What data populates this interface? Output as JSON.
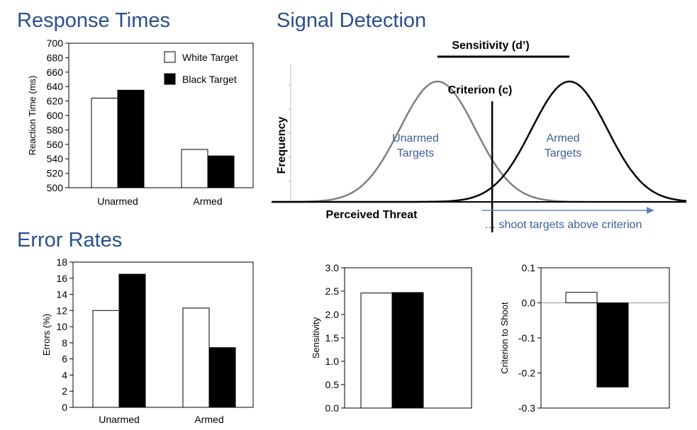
{
  "sections": {
    "response_times": "Response Times",
    "signal_detection": "Signal Detection",
    "error_rates": "Error Rates"
  },
  "colors": {
    "heading": "#2a4f8f",
    "curve_label": "#3b5f96",
    "unarmed_curve": "#808080",
    "armed_curve": "#000000",
    "white_bar": "#ffffff",
    "black_bar": "#000000",
    "arrow": "#5b86c2"
  },
  "signal_detection": {
    "sensitivity_label": "Sensitivity (d’)",
    "criterion_label": "Criterion (c)",
    "y_label": "Frequency",
    "x_label": "Perceived Threat",
    "unarmed_line1": "Unarmed",
    "unarmed_line2": "Targets",
    "armed_line1": "Armed",
    "armed_line2": "Targets",
    "arrow_text": "… shoot targets above criterion"
  },
  "chart_data": [
    {
      "id": "rt",
      "type": "bar",
      "title": "Response Times",
      "categories": [
        "Unarmed",
        "Armed"
      ],
      "series": [
        {
          "name": "White Target",
          "values": [
            624,
            553
          ]
        },
        {
          "name": "Black Target",
          "values": [
            635,
            544
          ]
        }
      ],
      "xlabel": "",
      "ylabel": "Reaction Time (ms)",
      "ylim": [
        500,
        700
      ],
      "yticks": [
        500,
        520,
        540,
        560,
        580,
        600,
        620,
        640,
        660,
        680,
        700
      ],
      "ytick_labels": [
        "500",
        "520",
        "540",
        "560",
        "580",
        "600",
        "620",
        "640",
        "660",
        "680",
        "700"
      ],
      "legend": "top-right",
      "grid": false
    },
    {
      "id": "err",
      "type": "bar",
      "title": "Error Rates",
      "categories": [
        "Unarmed",
        "Armed"
      ],
      "series": [
        {
          "values": [
            12.0,
            12.3
          ]
        },
        {
          "values": [
            16.5,
            7.4
          ]
        }
      ],
      "xlabel": "",
      "ylabel": "Errors (%)",
      "ylim": [
        0,
        18
      ],
      "yticks": [
        0,
        2,
        4,
        6,
        8,
        10,
        12,
        14,
        16,
        18
      ],
      "ytick_labels": [
        "0",
        "2",
        "4",
        "6",
        "8",
        "10",
        "12",
        "14",
        "16",
        "18"
      ],
      "grid": false
    },
    {
      "id": "sens",
      "type": "bar",
      "categories": [
        "",
        ""
      ],
      "values": [
        2.46,
        2.47
      ],
      "xlabel": "",
      "ylabel": "Sensitivity",
      "ylim": [
        0,
        3.0
      ],
      "yticks": [
        0,
        0.5,
        1.0,
        1.5,
        2.0,
        2.5,
        3.0
      ],
      "ytick_labels": [
        "0.0",
        "0.5",
        "1.0",
        "1.5",
        "2.0",
        "2.5",
        "3.0"
      ],
      "grid": false
    },
    {
      "id": "crit",
      "type": "bar",
      "categories": [
        "",
        ""
      ],
      "values": [
        0.03,
        -0.24
      ],
      "xlabel": "",
      "ylabel": "Criterion to Shoot",
      "ylim": [
        -0.3,
        0.1
      ],
      "yticks": [
        -0.3,
        -0.2,
        -0.1,
        0.0,
        0.1
      ],
      "ytick_labels": [
        "-0.3",
        "-0.2",
        "-0.1",
        "0.0",
        "0.1"
      ],
      "grid": false
    },
    {
      "id": "sdt",
      "type": "line",
      "title": "Signal Detection",
      "xlabel": "Perceived Threat",
      "ylabel": "Frequency",
      "series": [
        {
          "name": "Unarmed Targets",
          "distribution": "normal",
          "mean": 0.0,
          "sd": 1.0
        },
        {
          "name": "Armed Targets",
          "distribution": "normal",
          "mean": 3.5,
          "sd": 1.0
        }
      ],
      "criterion": 1.45,
      "xlim": [
        -4.4,
        6.6
      ]
    }
  ]
}
